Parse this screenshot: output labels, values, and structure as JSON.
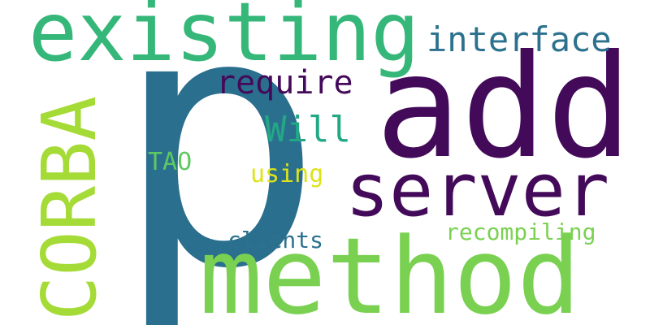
{
  "words": [
    {
      "id": "p",
      "text": "p",
      "color": "#2a6f8e"
    },
    {
      "id": "add",
      "text": "add",
      "color": "#440a5a"
    },
    {
      "id": "existing",
      "text": "existing",
      "color": "#35b779"
    },
    {
      "id": "method",
      "text": "method",
      "color": "#7ad151"
    },
    {
      "id": "server",
      "text": "server",
      "color": "#440a5a"
    },
    {
      "id": "corba",
      "text": "CORBA",
      "color": "#a5db36"
    },
    {
      "id": "interface",
      "text": "interface",
      "color": "#2c728e"
    },
    {
      "id": "require",
      "text": "require",
      "color": "#440a5a"
    },
    {
      "id": "will",
      "text": "Will",
      "color": "#22a884"
    },
    {
      "id": "tao",
      "text": "TAO",
      "color": "#5ec962"
    },
    {
      "id": "using",
      "text": "using",
      "color": "#dde318"
    },
    {
      "id": "clients",
      "text": "clients",
      "color": "#2c728e"
    },
    {
      "id": "recompiling",
      "text": "recompiling",
      "color": "#7ad151"
    }
  ]
}
